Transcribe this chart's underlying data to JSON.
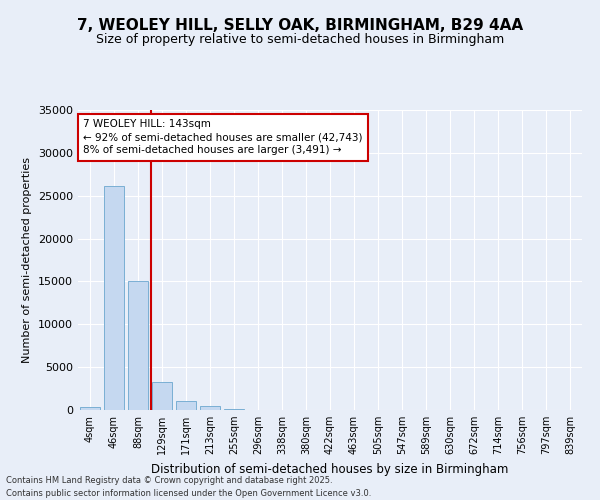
{
  "title_line1": "7, WEOLEY HILL, SELLY OAK, BIRMINGHAM, B29 4AA",
  "title_line2": "Size of property relative to semi-detached houses in Birmingham",
  "xlabel": "Distribution of semi-detached houses by size in Birmingham",
  "ylabel": "Number of semi-detached properties",
  "categories": [
    "4sqm",
    "46sqm",
    "88sqm",
    "129sqm",
    "171sqm",
    "213sqm",
    "255sqm",
    "296sqm",
    "338sqm",
    "380sqm",
    "422sqm",
    "463sqm",
    "505sqm",
    "547sqm",
    "589sqm",
    "630sqm",
    "672sqm",
    "714sqm",
    "756sqm",
    "797sqm",
    "839sqm"
  ],
  "values": [
    400,
    26100,
    15100,
    3300,
    1050,
    450,
    150,
    50,
    20,
    10,
    5,
    3,
    2,
    1,
    1,
    0,
    0,
    0,
    0,
    0,
    0
  ],
  "bar_color": "#c5d8f0",
  "bar_edge_color": "#7aafd4",
  "vline_x_index": 2.55,
  "annotation_text_line1": "7 WEOLEY HILL: 143sqm",
  "annotation_text_line2": "← 92% of semi-detached houses are smaller (42,743)",
  "annotation_text_line3": "8% of semi-detached houses are larger (3,491) →",
  "annotation_box_color": "#ffffff",
  "annotation_box_edge": "#cc0000",
  "vline_color": "#cc0000",
  "ylim": [
    0,
    35000
  ],
  "yticks": [
    0,
    5000,
    10000,
    15000,
    20000,
    25000,
    30000,
    35000
  ],
  "background_color": "#e8eef8",
  "grid_color": "#ffffff",
  "footer_line1": "Contains HM Land Registry data © Crown copyright and database right 2025.",
  "footer_line2": "Contains public sector information licensed under the Open Government Licence v3.0."
}
